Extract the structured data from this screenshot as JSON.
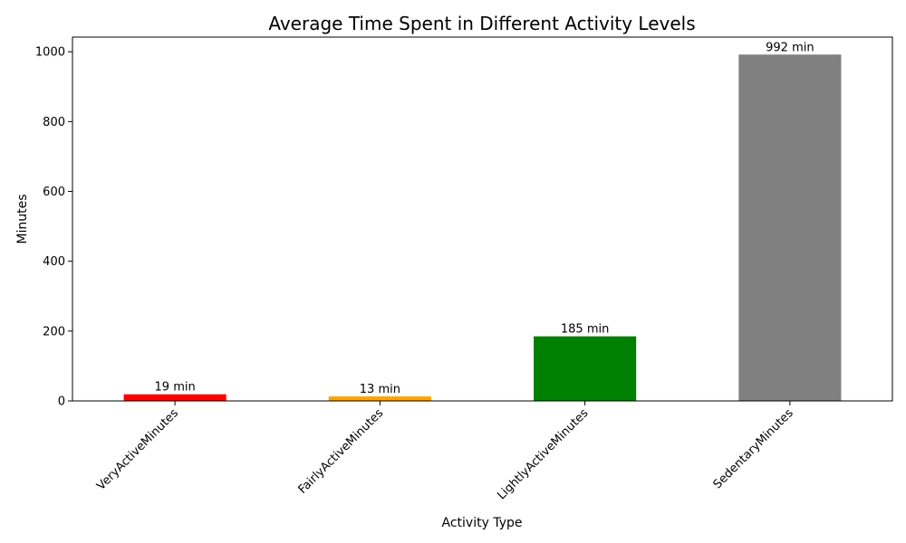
{
  "chart_data": {
    "type": "bar",
    "title": "Average Time Spent in Different Activity Levels",
    "xlabel": "Activity Type",
    "ylabel": "Minutes",
    "categories": [
      "VeryActiveMinutes",
      "FairlyActiveMinutes",
      "LightlyActiveMinutes",
      "SedentaryMinutes"
    ],
    "values": [
      19,
      13,
      185,
      992
    ],
    "data_labels": [
      "19 min",
      "13 min",
      "185 min",
      "992 min"
    ],
    "colors": [
      "#ff0000",
      "#ffa500",
      "#008000",
      "#808080"
    ],
    "ylim": [
      0,
      1042
    ],
    "yticks": [
      0,
      200,
      400,
      600,
      800,
      1000
    ],
    "grid": false,
    "legend": "none"
  }
}
